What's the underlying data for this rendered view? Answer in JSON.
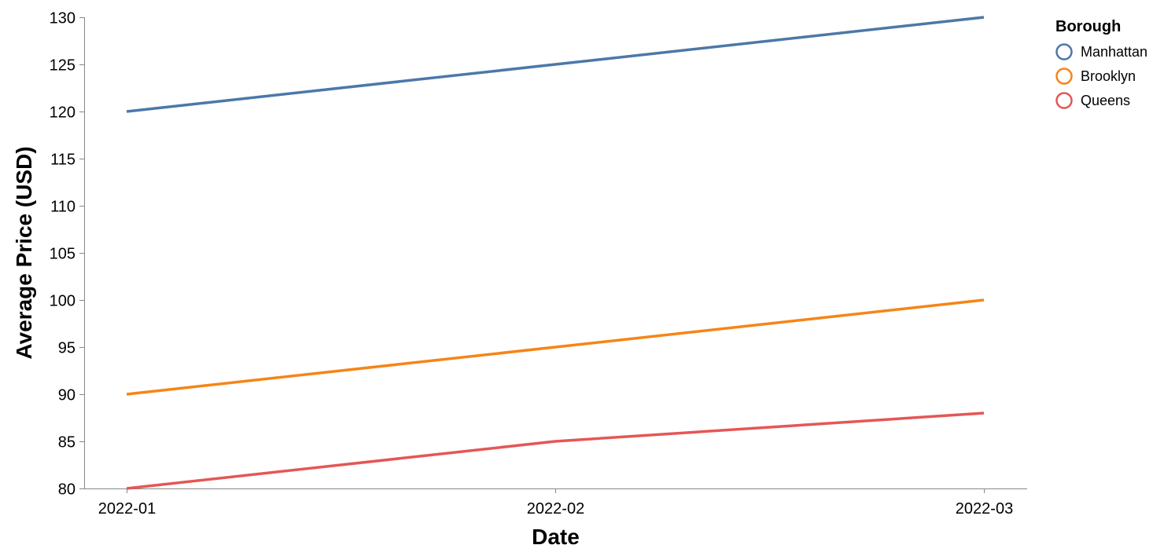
{
  "chart_data": {
    "type": "line",
    "title": "",
    "xlabel": "Date",
    "ylabel": "Average Price (USD)",
    "categories": [
      "2022-01",
      "2022-02",
      "2022-03"
    ],
    "ylim": [
      80,
      130
    ],
    "yticks": [
      80,
      85,
      90,
      95,
      100,
      105,
      110,
      115,
      120,
      125,
      130
    ],
    "grid": false,
    "legend": {
      "title": "Borough",
      "placement": "top-right"
    },
    "series": [
      {
        "name": "Manhattan",
        "color": "#4c78a8",
        "values": [
          120,
          125,
          130
        ]
      },
      {
        "name": "Brooklyn",
        "color": "#f58518",
        "values": [
          90,
          95,
          100
        ]
      },
      {
        "name": "Queens",
        "color": "#e45756",
        "values": [
          80,
          85,
          88
        ]
      }
    ]
  }
}
